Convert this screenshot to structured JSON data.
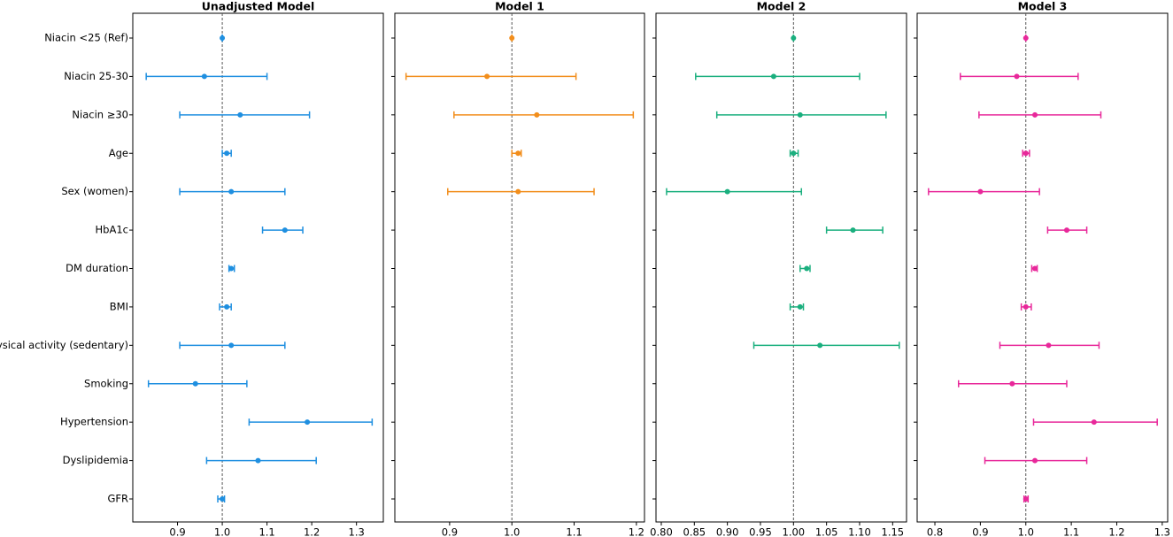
{
  "chart_data": [
    {
      "type": "forest",
      "title": "Unadjusted Model",
      "color": "#1f8fe0",
      "reference": 1,
      "categories": [
        "Niacin <25 (Ref)",
        "Niacin 25-30",
        "Niacin ≥30",
        "Age",
        "Sex (women)",
        "HbA1c",
        "DM duration",
        "BMI",
        "Physical activity (sedentary)",
        "Smoking",
        "Hypertension",
        "Dyslipidemia",
        "GFR"
      ],
      "values": [
        1.0,
        0.96,
        1.04,
        1.01,
        1.02,
        1.14,
        1.02,
        1.01,
        1.02,
        0.94,
        1.19,
        1.08,
        1.0
      ],
      "lower": [
        1.0,
        0.83,
        0.905,
        1.0,
        0.905,
        1.09,
        1.015,
        0.994,
        0.905,
        0.835,
        1.06,
        0.965,
        0.99
      ],
      "upper": [
        1.0,
        1.1,
        1.195,
        1.02,
        1.14,
        1.18,
        1.027,
        1.02,
        1.14,
        1.055,
        1.335,
        1.21,
        1.005
      ],
      "xlim": [
        0.8,
        1.36
      ],
      "xticks": [
        0.9,
        {
          "value": 1,
          "label": "1.0"
        },
        1.1,
        1.2,
        1.3
      ]
    },
    {
      "type": "forest",
      "title": "Model 1",
      "color": "#f28e1c",
      "reference": 1,
      "values": [
        1.0,
        0.96,
        1.04,
        1.01,
        1.01,
        null,
        null,
        null,
        null,
        null,
        null,
        null,
        null
      ],
      "lower": [
        1.0,
        0.83,
        0.907,
        1.0,
        0.897,
        null,
        null,
        null,
        null,
        null,
        null,
        null,
        null
      ],
      "upper": [
        1.0,
        1.103,
        1.195,
        1.015,
        1.132,
        null,
        null,
        null,
        null,
        null,
        null,
        null,
        null
      ],
      "xlim": [
        0.812,
        1.213
      ],
      "xticks": [
        0.9,
        {
          "value": 1,
          "label": "1.0"
        },
        1.1,
        1.2
      ]
    },
    {
      "type": "forest",
      "title": "Model 2",
      "color": "#1aaf7e",
      "reference": 1,
      "values": [
        1.0,
        0.97,
        1.01,
        1.0,
        0.9,
        1.09,
        1.02,
        1.01,
        1.04,
        null,
        null,
        null,
        null
      ],
      "lower": [
        1.0,
        0.852,
        0.884,
        0.995,
        0.808,
        1.05,
        1.01,
        0.995,
        0.94,
        null,
        null,
        null,
        null
      ],
      "upper": [
        1.0,
        1.1,
        1.14,
        1.007,
        1.012,
        1.135,
        1.025,
        1.015,
        1.16,
        null,
        null,
        null,
        null
      ],
      "xlim": [
        0.792,
        1.171
      ],
      "xticks": [
        {
          "value": 0.8,
          "label": "0.80"
        },
        0.85,
        {
          "value": 0.9,
          "label": "0.90"
        },
        0.95,
        {
          "value": 1,
          "label": "1.00"
        },
        1.05,
        {
          "value": 1.1,
          "label": "1.10"
        },
        1.15
      ]
    },
    {
      "type": "forest",
      "title": "Model 3",
      "color": "#e8289a",
      "reference": 1,
      "values": [
        1.0,
        0.98,
        1.02,
        1.0,
        0.9,
        1.09,
        1.02,
        1.0,
        1.05,
        0.97,
        1.15,
        1.02,
        1.0
      ],
      "lower": [
        1.0,
        0.856,
        0.897,
        0.993,
        0.786,
        1.048,
        1.013,
        0.99,
        0.943,
        0.852,
        1.017,
        0.91,
        0.996
      ],
      "upper": [
        1.0,
        1.115,
        1.165,
        1.008,
        1.03,
        1.134,
        1.025,
        1.012,
        1.161,
        1.09,
        1.289,
        1.134,
        1.005
      ],
      "xlim": [
        0.761,
        1.312
      ],
      "xticks": [
        0.8,
        0.9,
        {
          "value": 1,
          "label": "1.0"
        },
        1.1,
        1.2,
        1.3
      ]
    }
  ]
}
